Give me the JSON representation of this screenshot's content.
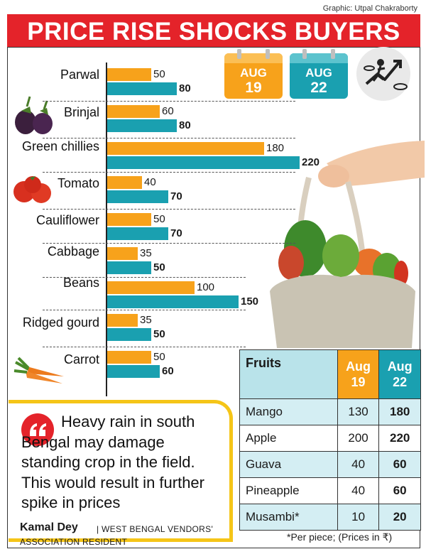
{
  "credit": "Graphic: Utpal Chakraborty",
  "title": "PRICE RISE SHOCKS BUYERS",
  "legend": [
    {
      "line1": "AUG",
      "line2": "19",
      "color": "#f7a21b"
    },
    {
      "line1": "AUG",
      "line2": "22",
      "color": "#1aa0b0"
    }
  ],
  "chart_data": {
    "type": "bar",
    "orientation": "horizontal",
    "categories": [
      "Parwal",
      "Brinjal",
      "Green chillies",
      "Tomato",
      "Cauliflower",
      "Cabbage",
      "Beans",
      "Ridged gourd",
      "Carrot"
    ],
    "series": [
      {
        "name": "AUG 19",
        "color": "#f7a21b",
        "values": [
          50,
          60,
          180,
          40,
          50,
          35,
          100,
          35,
          50
        ]
      },
      {
        "name": "AUG 22",
        "color": "#1aa0b0",
        "values": [
          80,
          80,
          220,
          70,
          70,
          50,
          150,
          50,
          60
        ]
      }
    ],
    "xlim": [
      0,
      220
    ],
    "grid": false,
    "legend_position": "top-right"
  },
  "fruits_table": {
    "headers": {
      "fruit": "Fruits",
      "aug19_line1": "Aug",
      "aug19_line2": "19",
      "aug22_line1": "Aug",
      "aug22_line2": "22"
    },
    "rows": [
      {
        "name": "Mango",
        "aug19": "130",
        "aug22": "180"
      },
      {
        "name": "Apple",
        "aug19": "200",
        "aug22": "220"
      },
      {
        "name": "Guava",
        "aug19": "40",
        "aug22": "60"
      },
      {
        "name": "Pineapple",
        "aug19": "40",
        "aug22": "60"
      },
      {
        "name": "Musambi*",
        "aug19": "10",
        "aug22": "20"
      }
    ],
    "footnote": "*Per piece; (Prices in ₹)"
  },
  "quote": {
    "text": "Heavy rain in south Bengal may damage standing crop in the field. This would result in further spike in prices",
    "author": "Kamal Dey",
    "org_line1": "| WEST BENGAL VENDORS'",
    "org_line2": "ASSOCIATION RESIDENT"
  },
  "icons": [
    "eggplant-icon",
    "tomato-icon",
    "carrot-icon",
    "price-rise-icon",
    "quote-icon",
    "vegetable-bag-icon"
  ]
}
